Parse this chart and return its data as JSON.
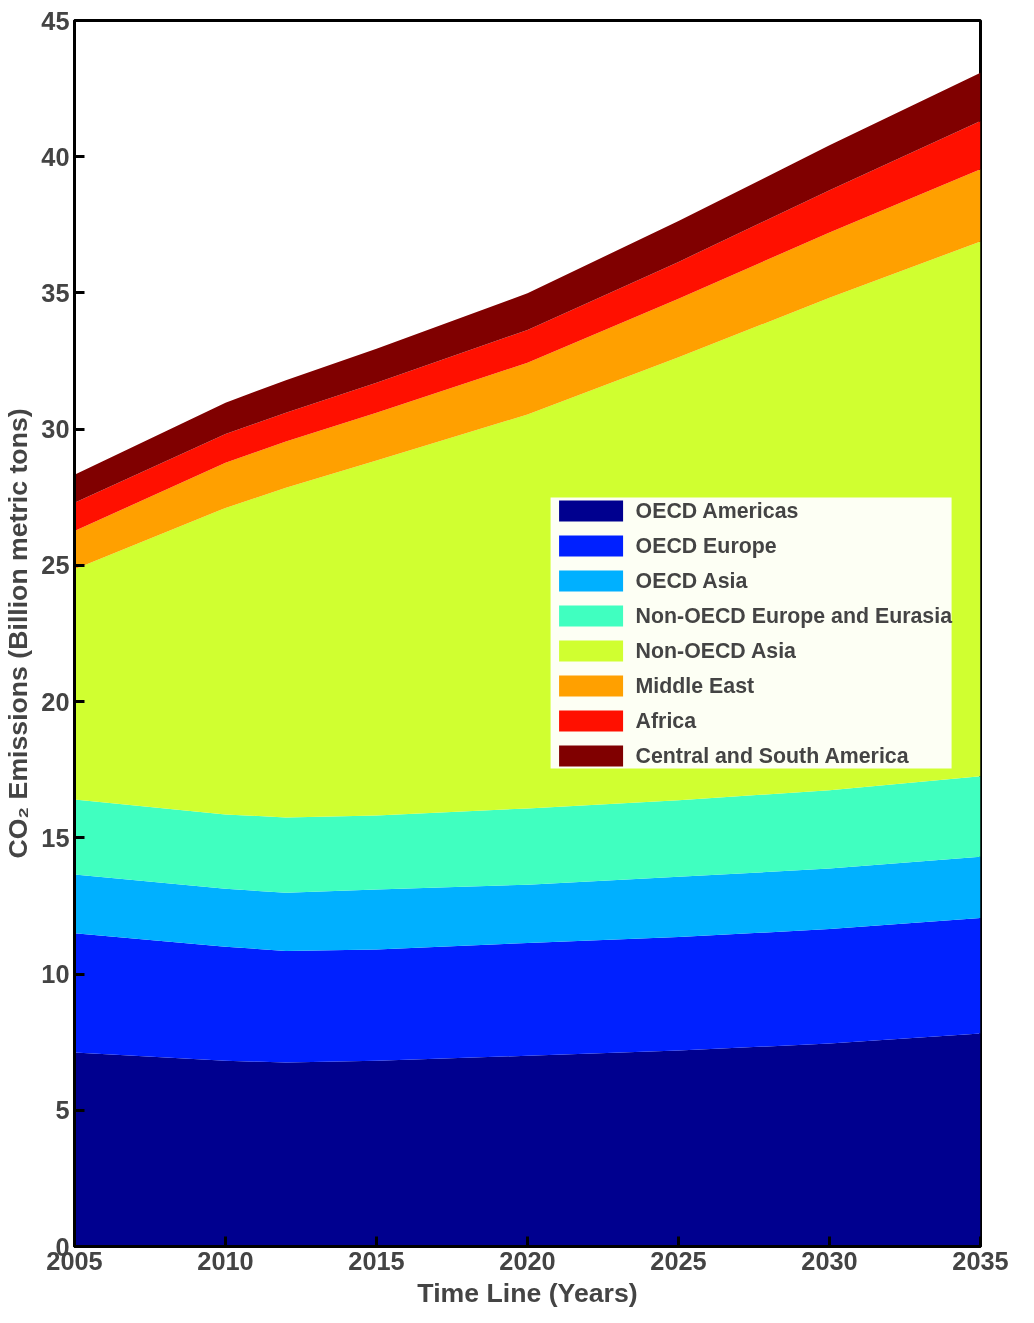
{
  "chart_data": {
    "type": "area",
    "stacked": true,
    "xlabel": "Time Line (Years)",
    "ylabel": "CO₂ Emissions (Billion metric tons)",
    "x": [
      2005,
      2010,
      2012,
      2015,
      2020,
      2025,
      2030,
      2035
    ],
    "xlim": [
      2005,
      2035
    ],
    "xticks": [
      2005,
      2010,
      2015,
      2020,
      2025,
      2030,
      2035
    ],
    "ylim": [
      0,
      45
    ],
    "yticks": [
      0,
      5,
      10,
      15,
      20,
      25,
      30,
      35,
      40,
      45
    ],
    "grid": false,
    "legend": "right",
    "series": [
      {
        "name": "OECD Americas",
        "color": "#00008f",
        "values": [
          7.12,
          6.82,
          6.75,
          6.82,
          7.0,
          7.19,
          7.45,
          7.82
        ]
      },
      {
        "name": "OECD Europe",
        "color": "#0020ff",
        "values": [
          4.38,
          4.18,
          4.1,
          4.08,
          4.14,
          4.17,
          4.2,
          4.24
        ]
      },
      {
        "name": "OECD Asia",
        "color": "#00b0ff",
        "values": [
          2.15,
          2.13,
          2.13,
          2.2,
          2.14,
          2.21,
          2.22,
          2.25
        ]
      },
      {
        "name": "Non-OECD Europe and Eurasia",
        "color": "#40ffc0",
        "values": [
          2.76,
          2.73,
          2.77,
          2.72,
          2.8,
          2.81,
          2.88,
          2.95
        ]
      },
      {
        "name": "Non-OECD Asia",
        "color": "#d0ff30",
        "values": [
          8.45,
          11.25,
          12.1,
          13.03,
          14.46,
          16.26,
          18.07,
          19.63
        ]
      },
      {
        "name": "Middle East",
        "color": "#ffa000",
        "values": [
          1.4,
          1.66,
          1.7,
          1.75,
          1.9,
          2.15,
          2.4,
          2.65
        ]
      },
      {
        "name": "Africa",
        "color": "#ff1000",
        "values": [
          1.04,
          1.05,
          1.05,
          1.1,
          1.2,
          1.35,
          1.55,
          1.77
        ]
      },
      {
        "name": "Central and South America",
        "color": "#800000",
        "values": [
          1.03,
          1.15,
          1.2,
          1.25,
          1.35,
          1.5,
          1.65,
          1.77
        ]
      }
    ]
  }
}
